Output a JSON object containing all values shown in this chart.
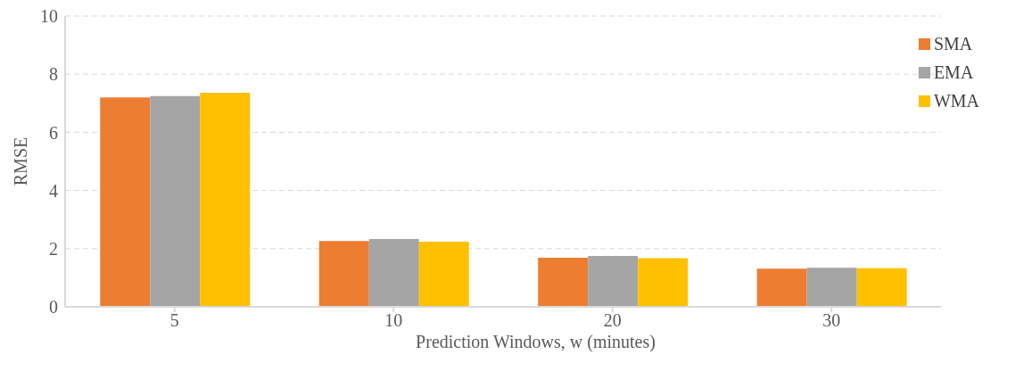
{
  "chart_data": {
    "type": "bar",
    "xlabel": "Prediction Windows, w (minutes)",
    "ylabel": "RMSE",
    "categories": [
      "5",
      "10",
      "20",
      "30"
    ],
    "series": [
      {
        "name": "SMA",
        "color": "#ed7d31",
        "values": [
          7.2,
          2.26,
          1.69,
          1.31
        ]
      },
      {
        "name": "EMA",
        "color": "#a5a5a5",
        "values": [
          7.25,
          2.33,
          1.75,
          1.34
        ]
      },
      {
        "name": "WMA",
        "color": "#ffc000",
        "values": [
          7.36,
          2.24,
          1.67,
          1.33
        ]
      }
    ],
    "ylim": [
      0,
      10
    ],
    "yticks": [
      0,
      2,
      4,
      6,
      8,
      10
    ],
    "grid": "y",
    "legend": "top right"
  }
}
